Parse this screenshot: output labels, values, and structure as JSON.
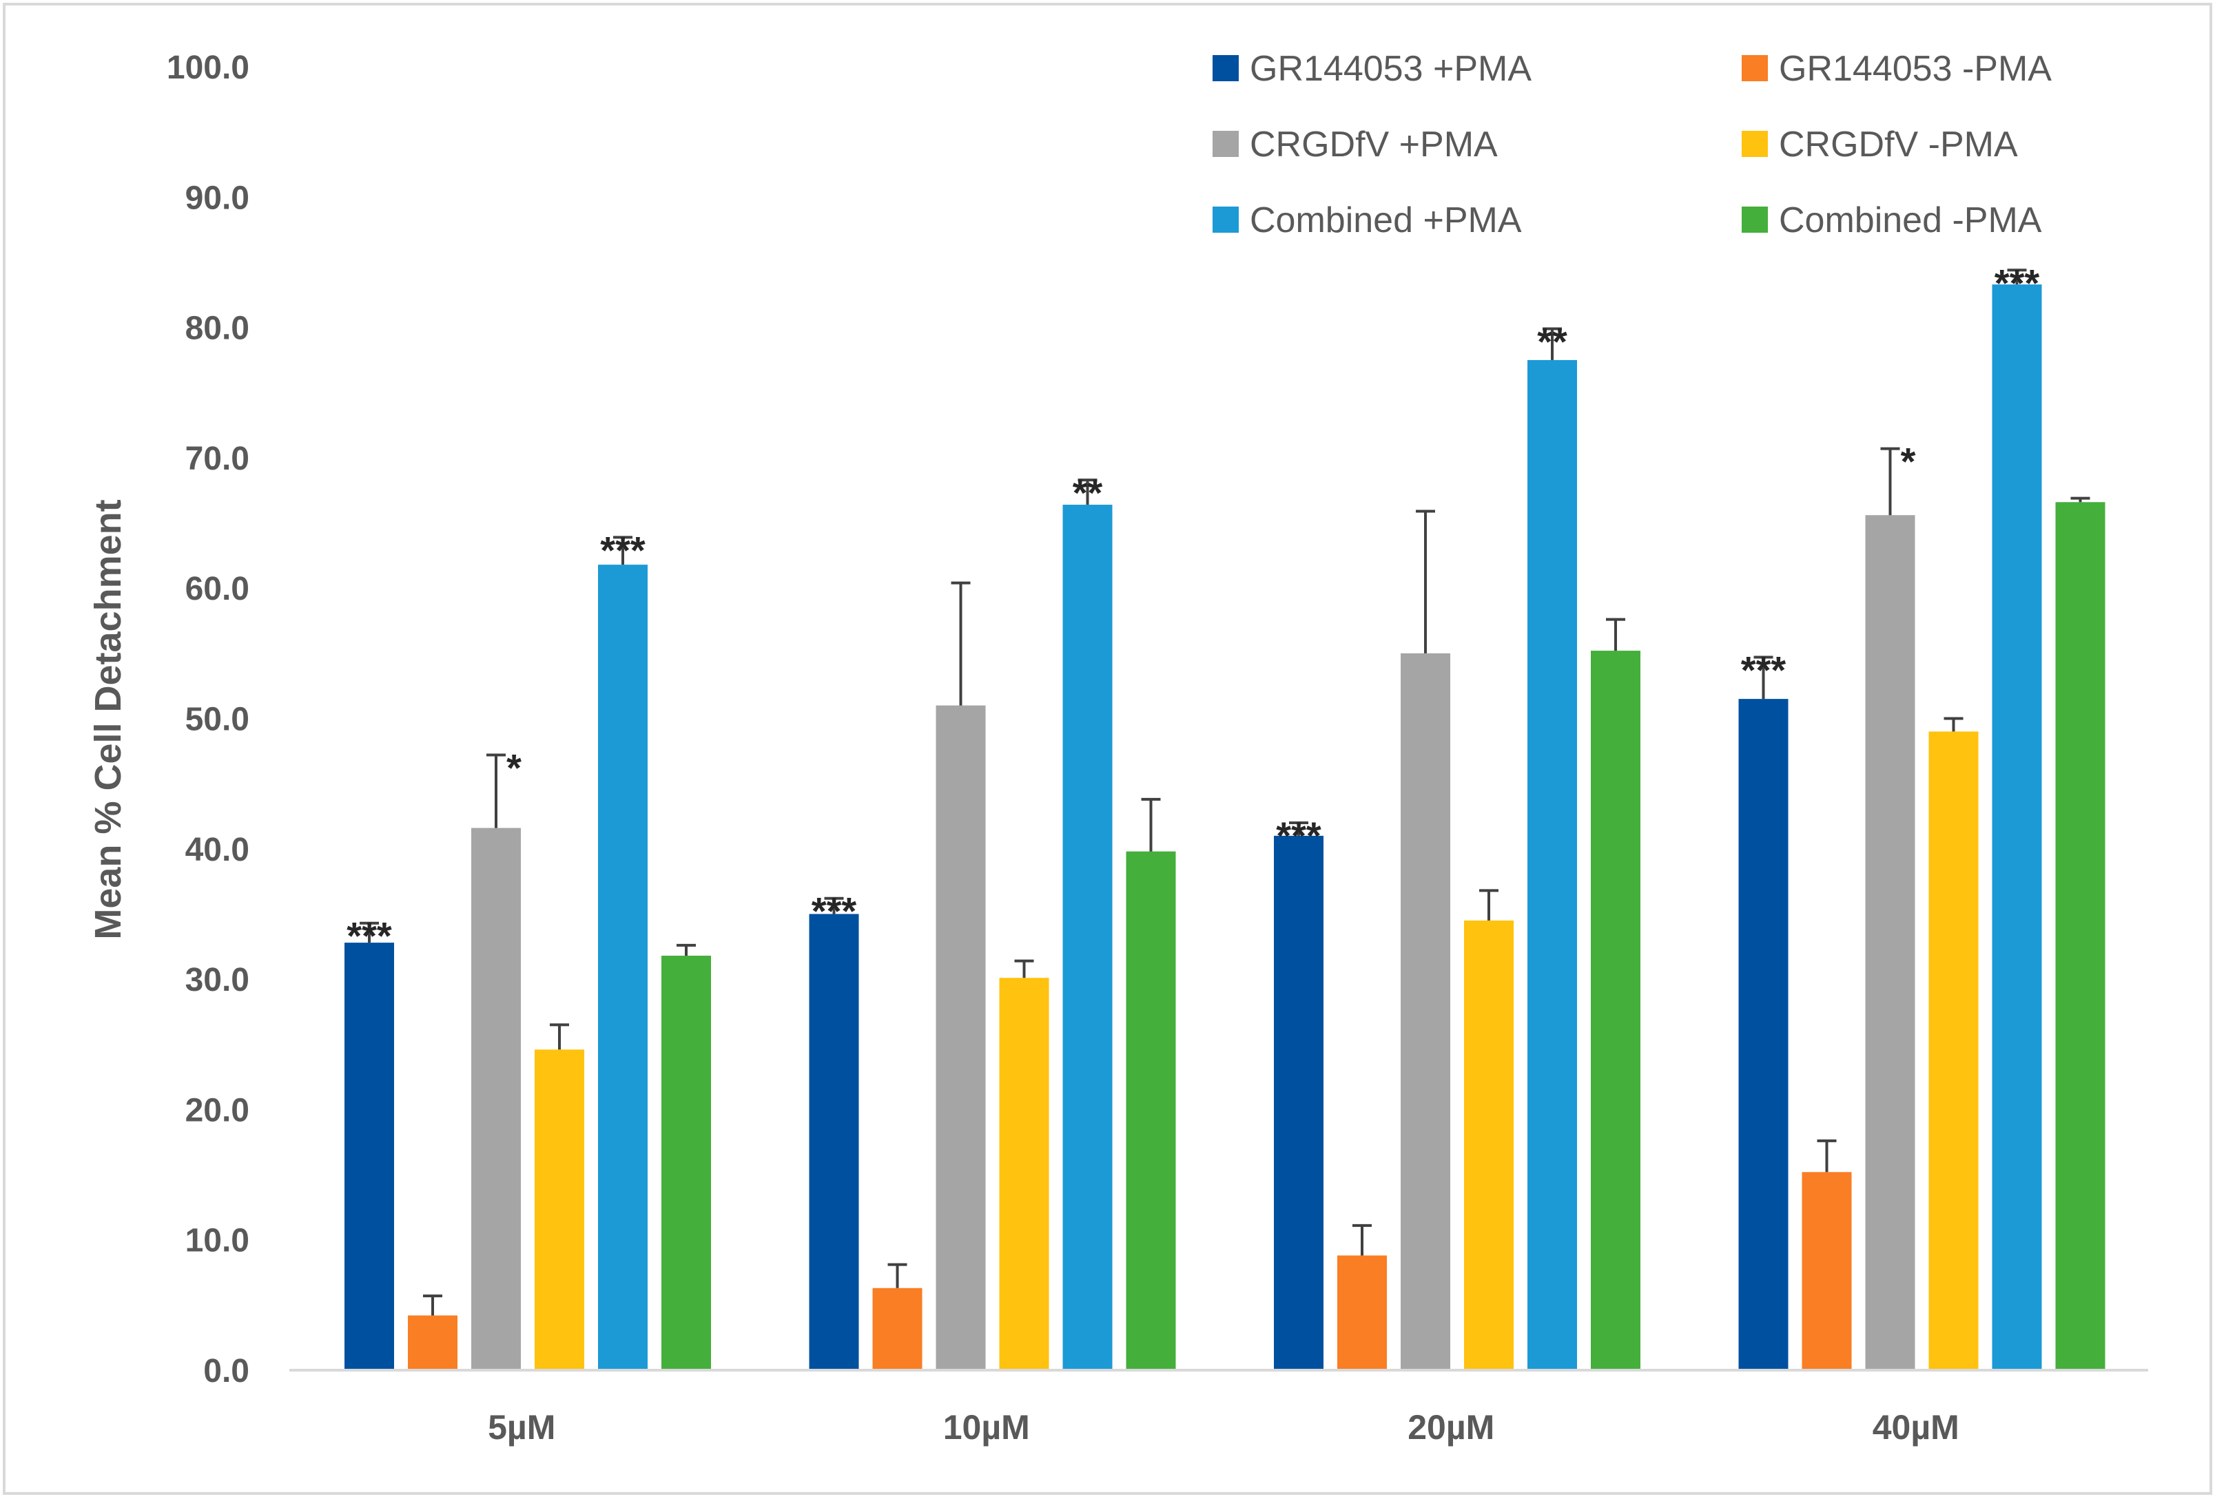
{
  "chart_data": {
    "type": "bar",
    "title": "",
    "xlabel": "",
    "ylabel": "Mean % Cell Detachment",
    "ylim": [
      0,
      100
    ],
    "yticks": [
      "0.0",
      "10.0",
      "20.0",
      "30.0",
      "40.0",
      "50.0",
      "60.0",
      "70.0",
      "80.0",
      "90.0",
      "100.0"
    ],
    "categories": [
      "5µM",
      "10µM",
      "20µM",
      "40µM"
    ],
    "grid": false,
    "legend_position": "top-right",
    "series": [
      {
        "name": "GR144053 +PMA",
        "color": "#0050A0",
        "values": [
          32.8,
          35.0,
          41.0,
          51.5
        ],
        "errors": [
          1.5,
          1.2,
          1.0,
          3.2
        ],
        "significance": [
          "***",
          "***",
          "***",
          "***"
        ]
      },
      {
        "name": "GR144053 -PMA",
        "color": "#F97E24",
        "values": [
          4.2,
          6.3,
          8.8,
          15.2
        ],
        "errors": [
          1.5,
          1.8,
          2.3,
          2.4
        ],
        "significance": [
          "",
          "",
          "",
          ""
        ]
      },
      {
        "name": "CRGDfV +PMA",
        "color": "#A5A5A5",
        "values": [
          41.6,
          51.0,
          55.0,
          65.6
        ],
        "errors": [
          5.6,
          9.4,
          10.9,
          5.1
        ],
        "significance": [
          "*",
          "",
          "",
          "*"
        ]
      },
      {
        "name": "CRGDfV -PMA",
        "color": "#FFC20E",
        "values": [
          24.6,
          30.1,
          34.5,
          49.0
        ],
        "errors": [
          1.9,
          1.3,
          2.3,
          1.0
        ],
        "significance": [
          "",
          "",
          "",
          ""
        ]
      },
      {
        "name": "Combined +PMA",
        "color": "#1C9AD6",
        "values": [
          61.8,
          66.4,
          77.5,
          83.3
        ],
        "errors": [
          2.1,
          1.9,
          2.4,
          1.1
        ],
        "significance": [
          "***",
          "**",
          "**",
          "***"
        ]
      },
      {
        "name": "Combined -PMA",
        "color": "#44AF3A",
        "values": [
          31.8,
          39.8,
          55.2,
          66.6
        ],
        "errors": [
          0.8,
          4.0,
          2.4,
          0.3
        ],
        "significance": [
          "",
          "",
          "",
          ""
        ]
      }
    ]
  }
}
